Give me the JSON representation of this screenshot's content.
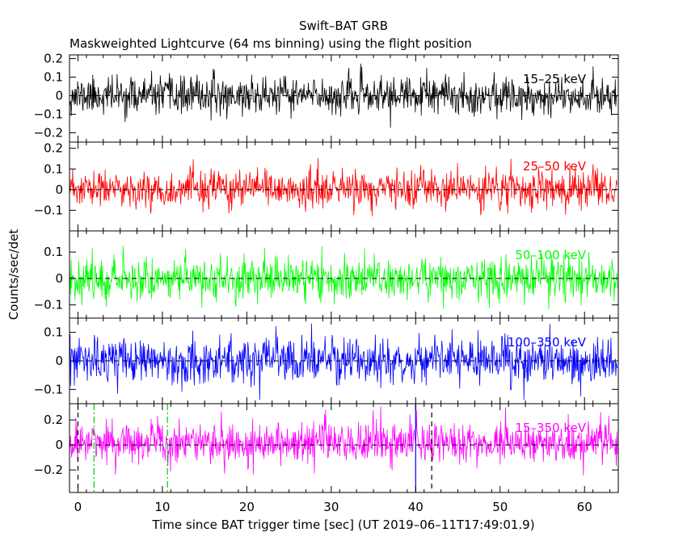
{
  "title": "Swift–BAT GRB",
  "subtitle": "Maskweighted Lightcurve (64 ms binning) using the flight position",
  "ylabel": "Counts/sec/det",
  "xlabel": "Time since BAT trigger time [sec] (UT 2019–06–11T17:49:01.9)",
  "colors": {
    "axis": "#000000",
    "band_15_25": "#000000",
    "band_25_50": "#ff0000",
    "band_50_100": "#00ff00",
    "band_100_350": "#0000ff",
    "band_15_350": "#ff00ff",
    "marker_green": "#00cc00",
    "marker_black": "#000000",
    "marker_blue": "#0000ff"
  },
  "chart_data": {
    "type": "line",
    "x_range": [
      -1.0,
      64.0
    ],
    "x_ticks": [
      0,
      10,
      20,
      30,
      40,
      50,
      60
    ],
    "x_tick_labels": [
      "0",
      "10",
      "20",
      "30",
      "40",
      "50",
      "60"
    ],
    "bin_seconds": 0.064,
    "panels": [
      {
        "name": "15–25 keV",
        "label": "15–25 keV",
        "color_key": "band_15_25",
        "ylim": [
          -0.25,
          0.22
        ],
        "y_ticks": [
          -0.2,
          -0.1,
          0,
          0.1,
          0.2
        ],
        "y_tick_labels": [
          "−0.2",
          "−0.1",
          "0",
          "0.1",
          "0.2"
        ],
        "noise_sigma": 0.05,
        "mean": 0.0,
        "seed": 11
      },
      {
        "name": "25–50 keV",
        "label": "25–50 keV",
        "color_key": "band_25_50",
        "ylim": [
          -0.2,
          0.23
        ],
        "y_ticks": [
          -0.1,
          0,
          0.1,
          0.2
        ],
        "y_tick_labels": [
          "−0.1",
          "0",
          "0.1",
          "0.2"
        ],
        "noise_sigma": 0.045,
        "mean": 0.0,
        "seed": 23
      },
      {
        "name": "50–100 keV",
        "label": "50–100 keV",
        "color_key": "band_50_100",
        "ylim": [
          -0.15,
          0.18
        ],
        "y_ticks": [
          -0.1,
          0,
          0.1
        ],
        "y_tick_labels": [
          "−0.1",
          "0",
          "0.1"
        ],
        "noise_sigma": 0.04,
        "mean": 0.0,
        "seed": 37
      },
      {
        "name": "100–350 keV",
        "label": "100–350 keV",
        "color_key": "band_100_350",
        "ylim": [
          -0.15,
          0.15
        ],
        "y_ticks": [
          -0.1,
          0,
          0.1
        ],
        "y_tick_labels": [
          "−0.1",
          "0",
          "0.1"
        ],
        "noise_sigma": 0.04,
        "mean": 0.0,
        "seed": 53
      },
      {
        "name": "15–350 keV",
        "label": "15–350 keV",
        "color_key": "band_15_350",
        "ylim": [
          -0.38,
          0.33
        ],
        "y_ticks": [
          -0.2,
          0,
          0.2
        ],
        "y_tick_labels": [
          "−0.2",
          "0",
          "0.2"
        ],
        "noise_sigma": 0.085,
        "mean": 0.02,
        "seed": 71
      }
    ],
    "markers": [
      {
        "name": "T100 start",
        "x": 0.0,
        "color_key": "marker_black",
        "style": "dashed"
      },
      {
        "name": "T90 start",
        "x": 1.9,
        "color_key": "marker_green",
        "style": "dashdot"
      },
      {
        "name": "T90 end",
        "x": 10.6,
        "color_key": "marker_green",
        "style": "dashdot"
      },
      {
        "name": "T100 end",
        "x": 41.9,
        "color_key": "marker_black",
        "style": "dashed"
      },
      {
        "name": "trigger window",
        "x": 40.0,
        "color_key": "marker_blue",
        "style": "solid"
      }
    ]
  }
}
